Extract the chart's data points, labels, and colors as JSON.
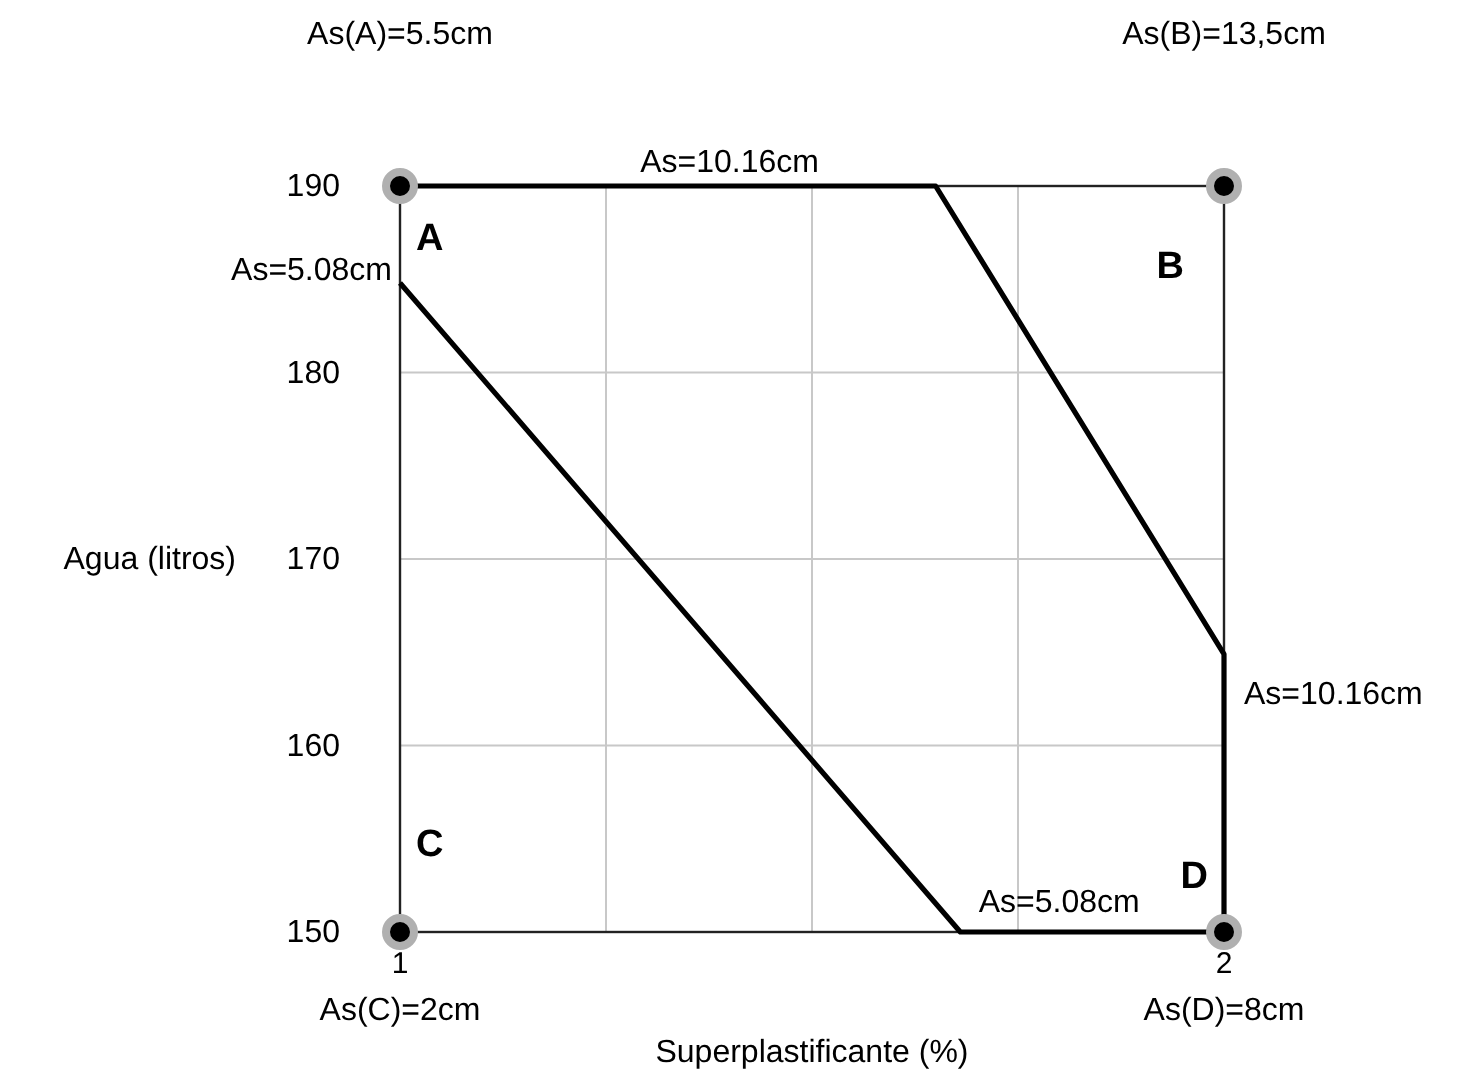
{
  "chart_data": {
    "type": "line",
    "xlabel": "Superplastificante (%)",
    "ylabel": "Agua (litros)",
    "xlim": [
      1,
      2
    ],
    "xticks": [
      1,
      {
        "value": 1.25,
        "label": null
      },
      {
        "value": 1.5,
        "label": null
      },
      {
        "value": 1.75,
        "label": null
      },
      2
    ],
    "ylim": [
      150,
      190
    ],
    "yticks": [
      150,
      160,
      170,
      180,
      190
    ],
    "grid": true,
    "marker": "none",
    "line_style": "solid",
    "series": [
      {
        "color": "#000000",
        "x": [
          1,
          1.68,
          2
        ],
        "values": [
          184.8,
          150,
          150
        ]
      },
      {
        "color": "#000000",
        "x": [
          1,
          1.65,
          2,
          2
        ],
        "values": [
          190,
          190,
          164.9,
          150
        ]
      },
      {
        "type": "scatter",
        "color": "#000000",
        "marker": "circle",
        "x": [
          1,
          2,
          1,
          2
        ],
        "values": [
          190,
          190,
          150,
          150
        ]
      }
    ],
    "annotations": [
      "As(A)=5.5cm",
      "As(B)=13,5cm",
      "As(C)=2cm",
      "As(D)=8cm",
      {
        "text": "A",
        "x": 1,
        "y": 190
      },
      {
        "text": "B",
        "x": 2,
        "y": 190
      },
      {
        "text": "C",
        "x": 1,
        "y": 150
      },
      {
        "text": "D",
        "x": 2,
        "y": 150
      },
      {
        "text": "As=10.16cm",
        "x": 1.4,
        "y": 190
      },
      {
        "text": "As=5.08cm",
        "x": 1,
        "y": 184.75
      },
      {
        "text": "As=10.16cm",
        "x": 2,
        "y": 164.9
      },
      "As=5.08cm"
    ]
  }
}
